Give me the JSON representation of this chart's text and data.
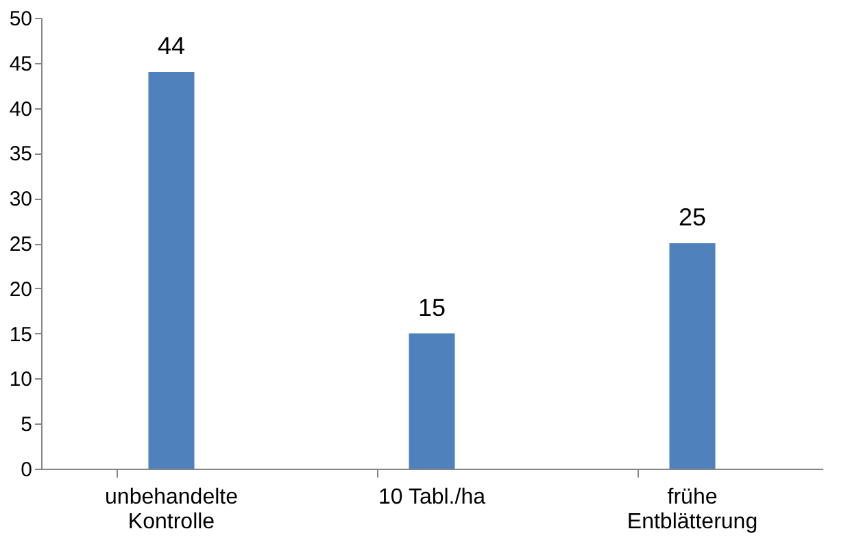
{
  "chart_data": {
    "type": "bar",
    "categories": [
      "unbehandelte Kontrolle",
      "10 Tabl./ha",
      "frühe Entblätterung"
    ],
    "values": [
      44,
      15,
      25
    ],
    "color": "#4f81bd",
    "ylim": [
      0,
      50
    ],
    "yticks": [
      0,
      5,
      10,
      15,
      20,
      25,
      30,
      35,
      40,
      45,
      50
    ],
    "grid": false,
    "data_labels": true
  }
}
